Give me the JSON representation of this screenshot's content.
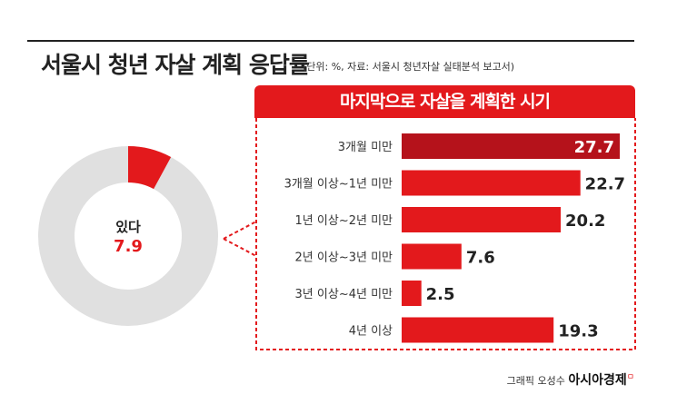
{
  "header": {
    "title": "서울시 청년 자살 계획 응답률",
    "subtitle": "(단위: %, 자료: 서울시 청년자살 실태분석 보고서)"
  },
  "donut": {
    "label": "있다",
    "value_text": "7.9",
    "value": 7.9,
    "highlight_color": "#e3191c",
    "rest_color": "#e0e0e0"
  },
  "panel": {
    "title": "마지막으로 자살을 계획한 시기"
  },
  "chart_data": {
    "type": "bar",
    "orientation": "horizontal",
    "categories": [
      "3개월 미만",
      "3개월 이상~1년 미만",
      "1년 이상~2년 미만",
      "2년 이상~3년 미만",
      "3년 이상~4년 미만",
      "4년 이상"
    ],
    "values": [
      27.7,
      22.7,
      20.2,
      7.6,
      2.5,
      19.3
    ],
    "value_labels": [
      "27.7",
      "22.7",
      "20.2",
      "7.6",
      "2.5",
      "19.3"
    ],
    "xlim": [
      0,
      27.7
    ],
    "bar_color": "#e3191c",
    "top_bar_color": "#b5121b",
    "grid": false
  },
  "footer": {
    "credit": "그래픽 오성수",
    "brand": "아시아경제",
    "mark": "ㅁ"
  }
}
